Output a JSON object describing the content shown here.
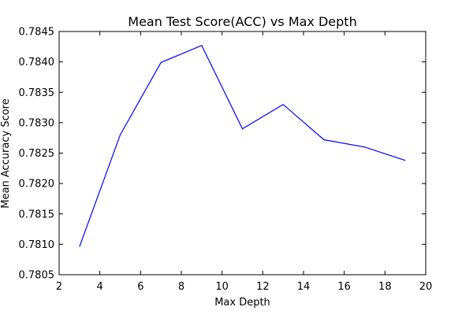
{
  "chart_data": {
    "type": "line",
    "title": "Mean Test Score(ACC) vs Max Depth",
    "xlabel": "Max Depth",
    "ylabel": "Mean Accuracy Score",
    "xlim": [
      2,
      20
    ],
    "ylim": [
      0.7805,
      0.7845
    ],
    "xticks": [
      2,
      4,
      6,
      8,
      10,
      12,
      14,
      16,
      18,
      20
    ],
    "xtick_labels": [
      "2",
      "4",
      "6",
      "8",
      "10",
      "12",
      "14",
      "16",
      "18",
      "20"
    ],
    "yticks": [
      0.7805,
      0.781,
      0.7815,
      0.782,
      0.7825,
      0.783,
      0.7835,
      0.784,
      0.7845
    ],
    "ytick_labels": [
      "0.7805",
      "0.7810",
      "0.7815",
      "0.7820",
      "0.7825",
      "0.7830",
      "0.7835",
      "0.7840",
      "0.7845"
    ],
    "grid": false,
    "legend": "none",
    "series": [
      {
        "color": "#0000ff",
        "x": [
          3,
          5,
          7,
          9,
          11,
          13,
          15,
          17,
          19
        ],
        "values": [
          0.78096,
          0.7828,
          0.78399,
          0.78427,
          0.7829,
          0.7833,
          0.78272,
          0.7826,
          0.78238
        ]
      }
    ]
  }
}
